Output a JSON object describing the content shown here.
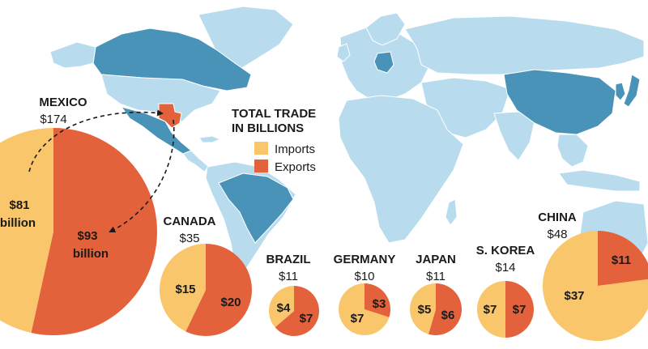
{
  "colors": {
    "imports": "#F9C66B",
    "exports": "#E3623C",
    "ocean": "#ffffff",
    "land": "#B8DCEE",
    "highlight": "#4A93B8",
    "texas": "#E3623C"
  },
  "legend": {
    "title_line1": "TOTAL TRADE",
    "title_line2": "IN BILLIONS",
    "imports": "Imports",
    "exports": "Exports"
  },
  "chart_data": {
    "type": "pie",
    "units": "billions of dollars",
    "series_names": [
      "Imports",
      "Exports"
    ],
    "countries": [
      {
        "name": "MEXICO",
        "total": "$174",
        "imports": 81,
        "exports": 93,
        "imports_label": "$81",
        "imports_label2": "billion",
        "exports_label": "$93",
        "exports_label2": "billion"
      },
      {
        "name": "CANADA",
        "total": "$35",
        "imports": 15,
        "exports": 20,
        "imports_label": "$15",
        "exports_label": "$20"
      },
      {
        "name": "BRAZIL",
        "total": "$11",
        "imports": 4,
        "exports": 7,
        "imports_label": "$4",
        "exports_label": "$7"
      },
      {
        "name": "GERMANY",
        "total": "$10",
        "imports": 7,
        "exports": 3,
        "imports_label": "$7",
        "exports_label": "$3"
      },
      {
        "name": "JAPAN",
        "total": "$11",
        "imports": 5,
        "exports": 6,
        "imports_label": "$5",
        "exports_label": "$6"
      },
      {
        "name": "S. KOREA",
        "total": "$14",
        "imports": 7,
        "exports": 7,
        "imports_label": "$7",
        "exports_label": "$7"
      },
      {
        "name": "CHINA",
        "total": "$48",
        "imports": 37,
        "exports": 11,
        "imports_label": "$37",
        "exports_label": "$11"
      }
    ]
  }
}
